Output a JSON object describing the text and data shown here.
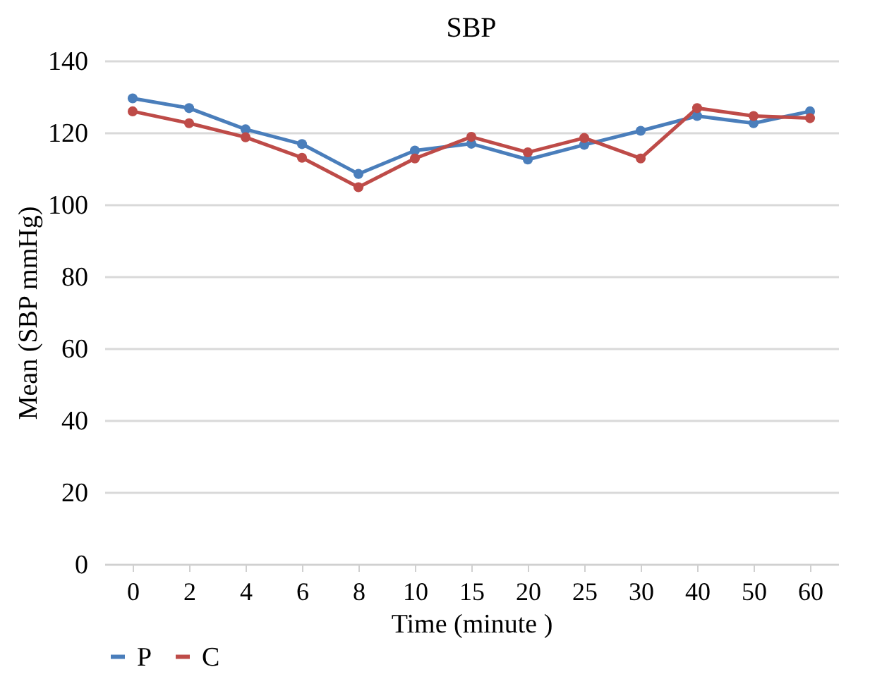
{
  "chart_data": {
    "type": "line",
    "title": "SBP",
    "xlabel": "Time (minute )",
    "ylabel": "Mean (SBP mmHg)",
    "categories": [
      "0",
      "2",
      "4",
      "6",
      "8",
      "10",
      "15",
      "20",
      "25",
      "30",
      "40",
      "50",
      "60"
    ],
    "series": [
      {
        "name": "P",
        "color": "#4a7ebb",
        "values": [
          129.5,
          126.8,
          120.9,
          116.8,
          108.5,
          115.0,
          116.9,
          112.5,
          116.6,
          120.5,
          124.6,
          122.6,
          125.9
        ]
      },
      {
        "name": "C",
        "color": "#be4b48",
        "values": [
          125.9,
          122.6,
          118.7,
          113.0,
          104.8,
          112.8,
          118.8,
          114.5,
          118.5,
          112.8,
          126.8,
          124.6,
          124.0
        ]
      }
    ],
    "ylim": [
      0,
      140
    ],
    "yticks": [
      0,
      20,
      40,
      60,
      80,
      100,
      120,
      140
    ],
    "grid": "y",
    "legend": "bottom",
    "marker": "circle",
    "line_style": "solid"
  }
}
